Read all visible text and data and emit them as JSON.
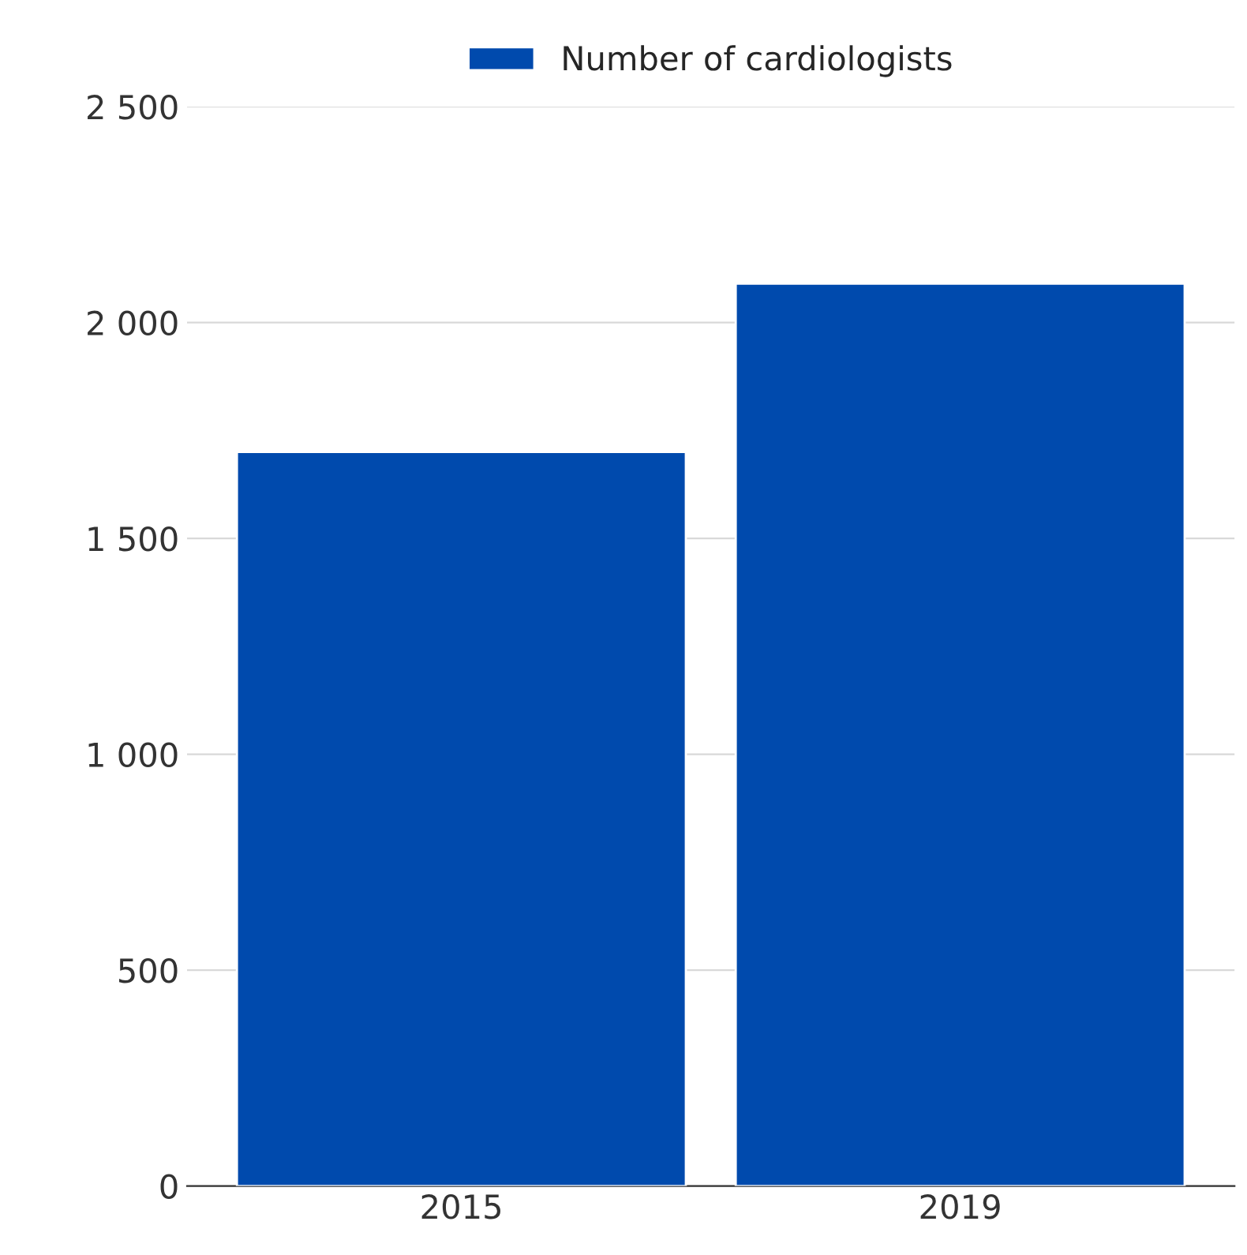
{
  "chart_data": {
    "type": "bar",
    "categories": [
      "2015",
      "2019"
    ],
    "series": [
      {
        "name": "Number of cardiologists",
        "color": "#004aad",
        "values": [
          1700,
          2090
        ]
      }
    ],
    "ylim": [
      0,
      2500
    ],
    "yticks": [
      0,
      500,
      {
        "value": 1000,
        "label": "1 000"
      },
      {
        "value": 1500,
        "label": "1 500"
      },
      {
        "value": 2000,
        "label": "2 000"
      },
      {
        "value": 2500,
        "label": "2 500"
      }
    ],
    "grid": "y",
    "legend": "top"
  }
}
